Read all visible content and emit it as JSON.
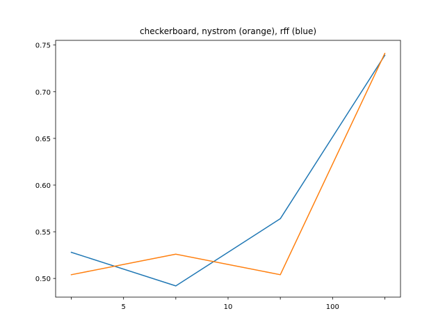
{
  "chart_data": {
    "type": "line",
    "title": "checkerboard, nystrom (orange), rff (blue)",
    "xlabel": "",
    "ylabel": "",
    "x_positions": [
      0,
      1,
      2,
      3
    ],
    "x_ticks": [
      {
        "pos": 0,
        "label": ""
      },
      {
        "pos": 0.5,
        "label": "5"
      },
      {
        "pos": 1,
        "label": ""
      },
      {
        "pos": 1.5,
        "label": "10"
      },
      {
        "pos": 2,
        "label": ""
      },
      {
        "pos": 2.5,
        "label": "100"
      },
      {
        "pos": 3,
        "label": ""
      }
    ],
    "y_ticks": [
      0.5,
      0.55,
      0.6,
      0.65,
      0.7,
      0.75
    ],
    "y_tick_labels": [
      "0.50",
      "0.55",
      "0.60",
      "0.65",
      "0.70",
      "0.75"
    ],
    "xlim": [
      -0.15,
      3.15
    ],
    "ylim": [
      0.48,
      0.755
    ],
    "grid": false,
    "series": [
      {
        "color": "#1f77b4",
        "values": [
          0.528,
          0.492,
          0.564,
          0.739
        ]
      },
      {
        "color": "#ff7f0e",
        "values": [
          0.504,
          0.526,
          0.504,
          0.741
        ]
      }
    ]
  }
}
